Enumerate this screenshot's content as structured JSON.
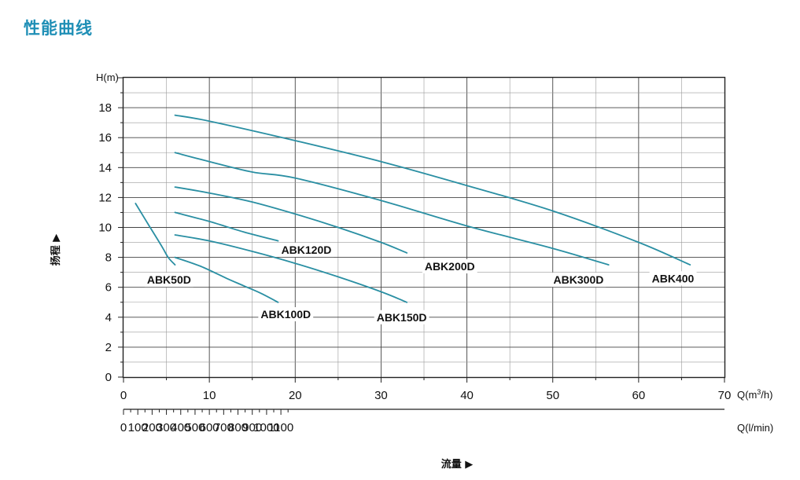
{
  "page": {
    "title": "性能曲线"
  },
  "chart_data": {
    "type": "line",
    "ylabel": "扬程 ▶",
    "xlabel": "流量 ▶",
    "y_unit": "H(m)",
    "x_unit_1": "Q(m³/h)",
    "x_unit_2": "Q(l/min)",
    "xlim": [
      0,
      70
    ],
    "ylim": [
      0,
      20
    ],
    "x_ticks": [
      "0",
      "10",
      "20",
      "30",
      "40",
      "50",
      "60",
      "70"
    ],
    "y_ticks": [
      "0",
      "2",
      "4",
      "6",
      "8",
      "10",
      "12",
      "14",
      "16",
      "18"
    ],
    "x2_ticks": [
      "0",
      "100",
      "200",
      "300",
      "400",
      "500",
      "600",
      "700",
      "800",
      "900",
      "1000",
      "1100"
    ],
    "grid": true,
    "line_color": "#2a8fa3",
    "series": [
      {
        "name": "ABK50D",
        "x": [
          1.4,
          3.0,
          4.5,
          5.2,
          6.0
        ],
        "y": [
          11.6,
          10.1,
          8.7,
          8.0,
          7.5
        ]
      },
      {
        "name": "ABK100D",
        "x": [
          6,
          9,
          12,
          14,
          16,
          18
        ],
        "y": [
          8.0,
          7.4,
          6.6,
          6.1,
          5.6,
          5.0
        ]
      },
      {
        "name": "ABK150D",
        "x": [
          6,
          10,
          15,
          20,
          25,
          30,
          33
        ],
        "y": [
          9.5,
          9.1,
          8.4,
          7.6,
          6.7,
          5.7,
          5.0
        ]
      },
      {
        "name": "ABK120D",
        "x": [
          6,
          10,
          14,
          18
        ],
        "y": [
          11.0,
          10.4,
          9.7,
          9.1
        ]
      },
      {
        "name": "ABK200D",
        "x": [
          6,
          10,
          15,
          20,
          25,
          30,
          33
        ],
        "y": [
          12.7,
          12.3,
          11.7,
          10.9,
          10.0,
          9.0,
          8.3
        ]
      },
      {
        "name": "ABK300D",
        "x": [
          6,
          10,
          15,
          20,
          30,
          40,
          50,
          56.5
        ],
        "y": [
          15.0,
          14.4,
          13.7,
          13.3,
          11.8,
          10.1,
          8.6,
          7.5
        ]
      },
      {
        "name": "ABK400",
        "x": [
          6,
          10,
          20,
          30,
          40,
          50,
          60,
          66
        ],
        "y": [
          17.5,
          17.1,
          15.8,
          14.4,
          12.8,
          11.1,
          9.0,
          7.5
        ]
      }
    ],
    "curve_labels": [
      {
        "name": "ABK50D",
        "x": 5.3,
        "y": 6.5
      },
      {
        "name": "ABK100D",
        "x": 18.9,
        "y": 4.2
      },
      {
        "name": "ABK150D",
        "x": 32.4,
        "y": 4.0
      },
      {
        "name": "ABK120D",
        "x": 21.3,
        "y": 8.5
      },
      {
        "name": "ABK200D",
        "x": 38.0,
        "y": 7.4
      },
      {
        "name": "ABK300D",
        "x": 53.0,
        "y": 6.5
      },
      {
        "name": "ABK400",
        "x": 64.0,
        "y": 6.6
      }
    ]
  }
}
